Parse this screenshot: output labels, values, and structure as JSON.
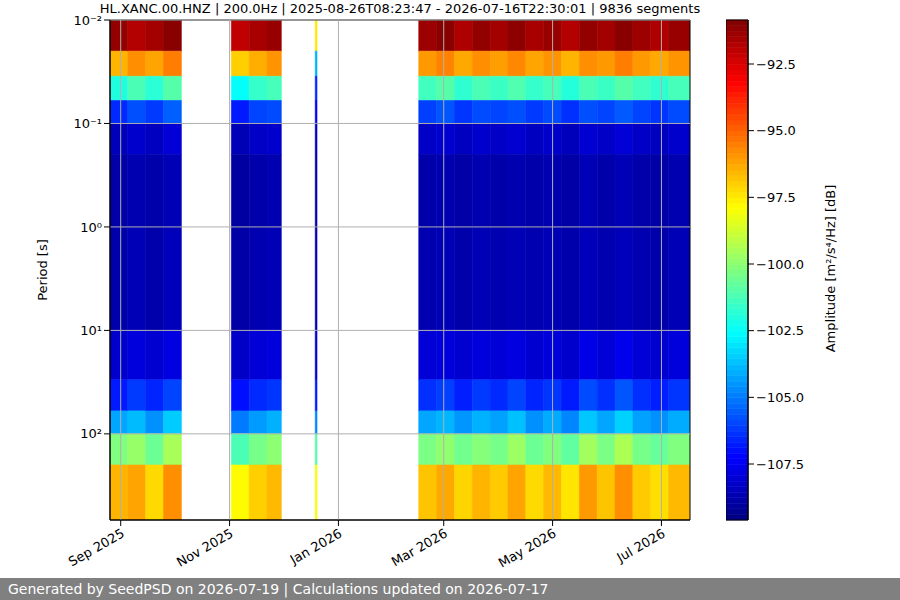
{
  "chart_data": {
    "type": "heatmap",
    "title": "HL.XANC.00.HNZ | 200.0Hz | 2025-08-26T08:23:47 - 2026-07-16T22:30:01 | 9836 segments",
    "ylabel": "Period [s]",
    "log": "y",
    "grid": true,
    "x_edges": [
      "2025-08-26",
      "2025-09-05",
      "2025-09-15",
      "2025-09-25",
      "2025-10-05",
      "2025-11-02",
      "2025-11-12",
      "2025-11-22",
      "2025-11-30",
      "2025-12-19",
      "2025-12-20",
      "2026-02-15",
      "2026-02-25",
      "2026-03-07",
      "2026-03-17",
      "2026-03-27",
      "2026-04-06",
      "2026-04-16",
      "2026-04-26",
      "2026-05-06",
      "2026-05-16",
      "2026-05-26",
      "2026-06-05",
      "2026-06-15",
      "2026-06-25",
      "2026-07-05",
      "2026-07-17"
    ],
    "y_edges": [
      0.01,
      0.02,
      0.035,
      0.06,
      0.1,
      0.2,
      1,
      10,
      30,
      60,
      100,
      200,
      680
    ],
    "cells": [
      [
        -91.2,
        -96.5,
        -102,
        -106.5,
        -108.5,
        -108.9,
        -108.8,
        -108.2,
        -106.8,
        -104.2,
        -100.2,
        -96.5
      ],
      [
        -91.8,
        -95.8,
        -101.2,
        -105.8,
        -108.2,
        -108.7,
        -108.6,
        -107.9,
        -106.2,
        -103.8,
        -99.8,
        -96.2
      ],
      [
        -91.5,
        -96.2,
        -101.8,
        -106.2,
        -108.4,
        -108.8,
        -108.8,
        -108.1,
        -106.6,
        -104.6,
        -100.6,
        -97.2
      ],
      [
        -91.0,
        -95.5,
        -101.0,
        -105.5,
        -108.0,
        -108.6,
        -108.5,
        -107.8,
        -106.0,
        -103.5,
        -99.5,
        -95.8
      ],
      null,
      [
        -92.0,
        -97.0,
        -102.5,
        -106.8,
        -108.6,
        -109.0,
        -108.9,
        -108.3,
        -107.0,
        -105.0,
        -101.2,
        -97.8
      ],
      [
        -91.6,
        -96.4,
        -101.6,
        -106.0,
        -108.3,
        -108.8,
        -108.7,
        -108.0,
        -106.5,
        -104.4,
        -100.4,
        -97.0
      ],
      [
        -91.3,
        -95.9,
        -101.3,
        -105.9,
        -108.2,
        -108.7,
        -108.6,
        -107.9,
        -106.3,
        -104.0,
        -100.0,
        -96.6
      ],
      null,
      [
        -97.5,
        -104.0,
        -106.5,
        -107.5,
        -108.5,
        -108.9,
        -108.8,
        -108.2,
        -106.8,
        -104.8,
        -101.0,
        -98.0
      ],
      null,
      [
        -91.4,
        -96.0,
        -101.4,
        -106.1,
        -108.3,
        -108.8,
        -108.7,
        -108.0,
        -106.4,
        -104.2,
        -100.3,
        -96.8
      ],
      [
        -91.0,
        -95.6,
        -101.0,
        -105.7,
        -108.1,
        -108.7,
        -108.6,
        -107.9,
        -106.1,
        -103.9,
        -99.9,
        -96.3
      ],
      [
        -91.7,
        -96.3,
        -101.7,
        -106.3,
        -108.4,
        -108.9,
        -108.8,
        -108.1,
        -106.7,
        -104.5,
        -100.5,
        -97.1
      ],
      [
        -91.2,
        -95.8,
        -101.2,
        -105.9,
        -108.2,
        -108.7,
        -108.6,
        -107.9,
        -106.2,
        -104.0,
        -100.1,
        -96.5
      ],
      [
        -91.5,
        -96.1,
        -101.5,
        -106.0,
        -108.3,
        -108.8,
        -108.7,
        -108.0,
        -106.5,
        -104.3,
        -100.4,
        -96.9
      ],
      [
        -91.1,
        -95.7,
        -101.1,
        -105.8,
        -108.1,
        -108.7,
        -108.6,
        -107.8,
        -106.0,
        -103.7,
        -99.7,
        -96.2
      ],
      [
        -91.6,
        -96.2,
        -101.6,
        -106.2,
        -108.4,
        -108.8,
        -108.7,
        -108.1,
        -106.6,
        -104.6,
        -100.6,
        -97.2
      ],
      [
        -91.3,
        -95.9,
        -101.3,
        -105.9,
        -108.2,
        -108.7,
        -108.6,
        -107.9,
        -106.3,
        -104.1,
        -100.2,
        -96.6
      ],
      [
        -91.8,
        -96.5,
        -101.9,
        -106.4,
        -108.5,
        -108.9,
        -108.8,
        -108.2,
        -106.8,
        -104.8,
        -100.8,
        -97.4
      ],
      [
        -91.2,
        -95.8,
        -101.2,
        -105.8,
        -108.1,
        -108.6,
        -108.5,
        -107.7,
        -105.9,
        -103.6,
        -99.6,
        -96.0
      ],
      [
        -91.5,
        -96.0,
        -101.5,
        -106.0,
        -108.3,
        -108.8,
        -108.7,
        -108.0,
        -106.4,
        -104.2,
        -100.3,
        -96.8
      ],
      [
        -91.0,
        -95.5,
        -101.0,
        -105.6,
        -108.0,
        -108.6,
        -108.5,
        -107.6,
        -105.7,
        -103.4,
        -99.4,
        -95.8
      ],
      [
        -91.4,
        -96.0,
        -101.4,
        -106.0,
        -108.3,
        -108.8,
        -108.7,
        -108.0,
        -106.4,
        -104.3,
        -100.4,
        -96.9
      ],
      [
        -91.7,
        -96.3,
        -101.7,
        -106.3,
        -108.4,
        -108.9,
        -108.8,
        -108.1,
        -106.7,
        -104.6,
        -100.7,
        -97.3
      ],
      [
        -91.3,
        -95.9,
        -101.3,
        -105.9,
        -108.2,
        -108.7,
        -108.6,
        -107.9,
        -106.3,
        -104.1,
        -100.2,
        -96.6
      ]
    ],
    "xlim": [
      "2025-08-26",
      "2026-07-17"
    ],
    "xticks": [
      {
        "value": "2025-09-01",
        "label": "Sep 2025"
      },
      {
        "value": "2025-11-01",
        "label": "Nov 2025"
      },
      {
        "value": "2026-01-01",
        "label": "Jan 2026"
      },
      {
        "value": "2026-03-01",
        "label": "Mar 2026"
      },
      {
        "value": "2026-05-01",
        "label": "May 2026"
      },
      {
        "value": "2026-07-01",
        "label": "Jul 2026"
      }
    ],
    "ylim": [
      680,
      0.01
    ],
    "yticks": [
      {
        "value": 0.01,
        "label": "10⁻²"
      },
      {
        "value": 0.1,
        "label": "10⁻¹"
      },
      {
        "value": 1,
        "label": "10⁰"
      },
      {
        "value": 10,
        "label": "10¹"
      },
      {
        "value": 100,
        "label": "10²"
      }
    ],
    "colorbar": {
      "label": "Amplitude [m²/s⁴/Hz] [dB]",
      "clim": [
        -109.6,
        -90.85
      ],
      "ticks": [
        {
          "value": -107.5,
          "label": "−107.5"
        },
        {
          "value": -105,
          "label": "−105.0"
        },
        {
          "value": -102.5,
          "label": "−102.5"
        },
        {
          "value": -100,
          "label": "−100.0"
        },
        {
          "value": -97.5,
          "label": "−97.5"
        },
        {
          "value": -95,
          "label": "−95.0"
        },
        {
          "value": -92.5,
          "label": "−92.5"
        }
      ]
    },
    "footer": "Generated by SeedPSD on 2026-07-19 | Calculations updated on 2026-07-17"
  }
}
